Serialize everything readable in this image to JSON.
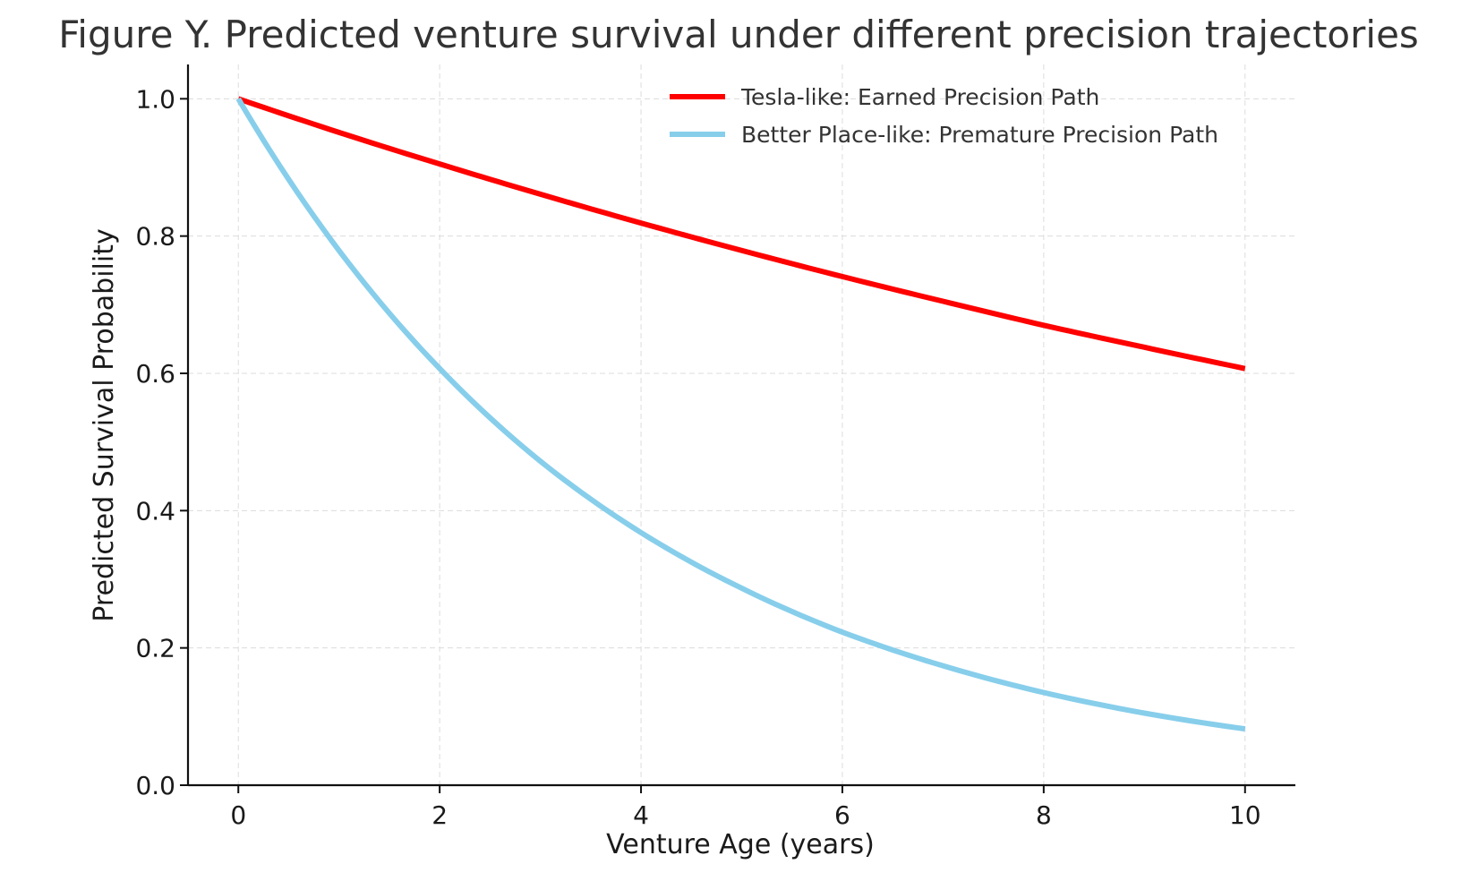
{
  "chart_data": {
    "type": "line",
    "title": "Figure Y. Predicted venture survival under different precision trajectories",
    "xlabel": "Venture Age (years)",
    "ylabel": "Predicted Survival Probability",
    "xlim": [
      -0.5,
      10.5
    ],
    "ylim": [
      0,
      1.05
    ],
    "xticks": [
      0,
      2,
      4,
      6,
      8,
      10
    ],
    "yticks": [
      0.0,
      0.2,
      0.4,
      0.6,
      0.8,
      1.0
    ],
    "xtick_labels": [
      "0",
      "2",
      "4",
      "6",
      "8",
      "10"
    ],
    "ytick_labels": [
      "0.0",
      "0.2",
      "0.4",
      "0.6",
      "0.8",
      "1.0"
    ],
    "grid": true,
    "legend_position": "top-right",
    "x": [
      0,
      1,
      2,
      3,
      4,
      5,
      6,
      7,
      8,
      9,
      10
    ],
    "series": [
      {
        "name": "Tesla-like: Earned Precision Path",
        "color": "#ff0000",
        "values": [
          1.0,
          0.951,
          0.905,
          0.861,
          0.819,
          0.779,
          0.741,
          0.705,
          0.67,
          0.638,
          0.607
        ]
      },
      {
        "name": "Better Place-like: Premature Precision Path",
        "color": "#87ceeb",
        "values": [
          1.0,
          0.779,
          0.607,
          0.472,
          0.368,
          0.287,
          0.223,
          0.174,
          0.135,
          0.105,
          0.082
        ]
      }
    ]
  }
}
